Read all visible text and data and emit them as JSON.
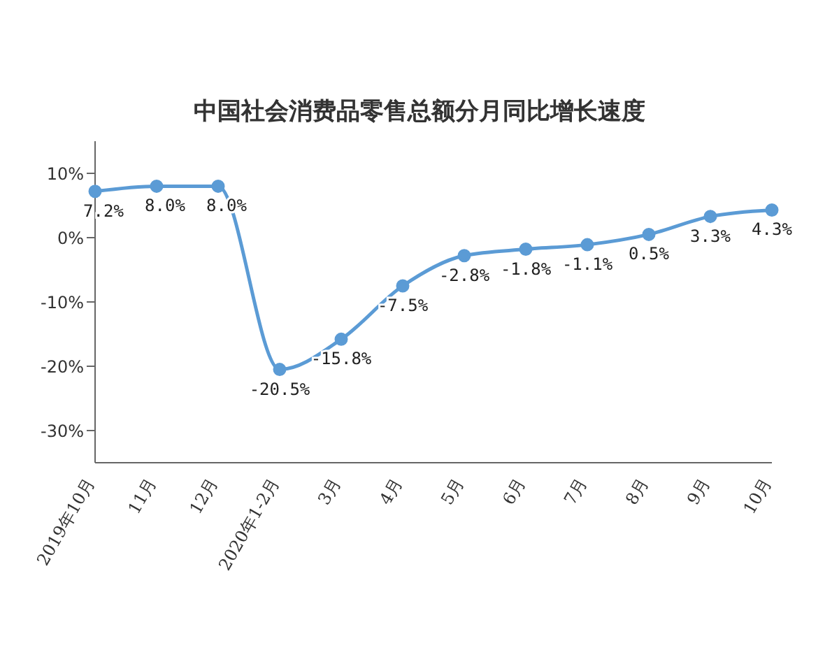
{
  "chart_data": {
    "type": "line",
    "title": "中国社会消费品零售总额分月同比增长速度",
    "categories": [
      "2019年10月",
      "11月",
      "12月",
      "2020年1-2月",
      "3月",
      "4月",
      "5月",
      "6月",
      "7月",
      "8月",
      "9月",
      "10月"
    ],
    "series": [
      {
        "color": "#5b9bd5",
        "values": [
          7.2,
          8.0,
          8.0,
          -20.5,
          -15.8,
          -7.5,
          -2.8,
          -1.8,
          -1.1,
          0.5,
          3.3,
          4.3
        ],
        "value_labels": [
          "7.2%",
          "8.0%",
          "8.0%",
          "-20.5%",
          "-15.8%",
          "-7.5%",
          "-2.8%",
          "-1.8%",
          "-1.1%",
          "0.5%",
          "3.3%",
          "4.3%"
        ]
      }
    ],
    "ylim": [
      -35,
      15
    ],
    "yticks": [
      {
        "value": 10,
        "label": "10%"
      },
      {
        "value": 0,
        "label": "0%"
      },
      {
        "value": -10,
        "label": "-10%"
      },
      {
        "value": -20,
        "label": "-20%"
      },
      {
        "value": -30,
        "label": "-30%"
      }
    ],
    "grid": false,
    "legend": false,
    "marker": "circle",
    "line_style": "solid"
  }
}
